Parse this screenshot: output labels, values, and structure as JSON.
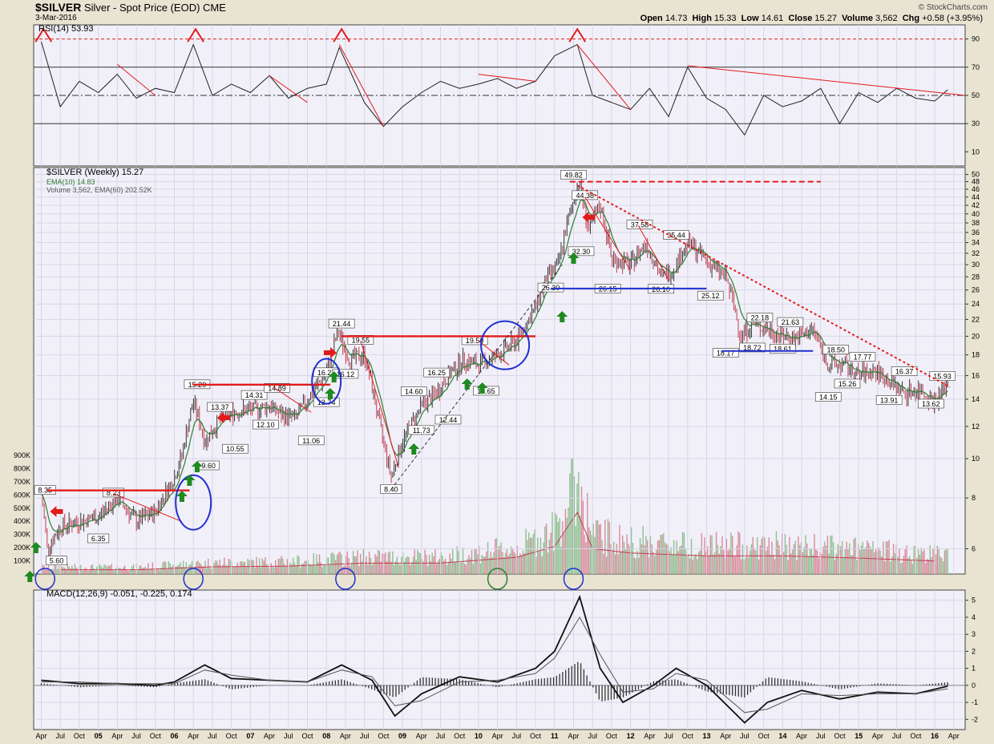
{
  "header": {
    "symbol": "$SILVER",
    "description": "Silver - Spot Price (EOD)",
    "exchange": "CME",
    "date": "3-Mar-2016",
    "brand": "© StockCharts.com",
    "open_label": "Open",
    "open": "14.73",
    "high_label": "High",
    "high": "15.33",
    "low_label": "Low",
    "low": "14.61",
    "close_label": "Close",
    "close": "15.27",
    "volume_label": "Volume",
    "volume": "3,562",
    "chg_label": "Chg",
    "chg": "+0.58 (+3.95%)"
  },
  "colors": {
    "background": "#e9e3d2",
    "panel": "#f1f0f9",
    "up_bar": "#5a9a5a",
    "down_bar": "#c23c4e",
    "ema": "#2e7d32",
    "trendline": "#e31b1b",
    "support": "#1f2fd0",
    "circle": "#1f2fd0",
    "arrow_up": "#1f8a1f",
    "arrow_left": "#e31b1b"
  },
  "chart_data": [
    {
      "type": "line",
      "panel": "rsi",
      "legend": "RSI(14) 53.93",
      "ylim": [
        0,
        100
      ],
      "ticks": [
        "90",
        "70",
        "50",
        "30",
        "10"
      ],
      "tick_values": [
        90,
        70,
        50,
        30,
        10
      ],
      "reference_lines": [
        90,
        70,
        50,
        30
      ],
      "x": [
        2004.25,
        2004.5,
        2004.75,
        2005.0,
        2005.25,
        2005.5,
        2005.75,
        2006.0,
        2006.25,
        2006.5,
        2006.75,
        2007.0,
        2007.25,
        2007.5,
        2007.75,
        2008.0,
        2008.17,
        2008.5,
        2008.75,
        2009.0,
        2009.25,
        2009.5,
        2009.75,
        2010.0,
        2010.25,
        2010.5,
        2010.75,
        2011.0,
        2011.3,
        2011.5,
        2011.75,
        2012.0,
        2012.25,
        2012.5,
        2012.75,
        2013.0,
        2013.25,
        2013.5,
        2013.75,
        2014.0,
        2014.25,
        2014.5,
        2014.75,
        2015.0,
        2015.25,
        2015.5,
        2015.75,
        2016.0,
        2016.17
      ],
      "values": [
        88,
        42,
        60,
        52,
        65,
        48,
        55,
        52,
        86,
        50,
        58,
        52,
        64,
        48,
        55,
        58,
        84,
        45,
        28,
        42,
        52,
        60,
        55,
        58,
        62,
        55,
        60,
        78,
        86,
        50,
        45,
        40,
        55,
        35,
        70,
        48,
        40,
        22,
        50,
        42,
        46,
        55,
        30,
        52,
        45,
        55,
        48,
        46,
        54
      ]
    },
    {
      "type": "bar",
      "panel": "price",
      "legend_title": "$SILVER (Weekly) 15.27",
      "legend_ema": "EMA(10) 14.83",
      "legend_volume": "Volume 3,562, EMA(60) 202.52K",
      "scale": "log",
      "ylim": [
        5.2,
        52
      ],
      "ticks": [
        "50",
        "48",
        "46",
        "44",
        "42",
        "40",
        "38",
        "36",
        "34",
        "32",
        "30",
        "28",
        "26",
        "24",
        "22",
        "20",
        "18",
        "16",
        "14",
        "12",
        "10",
        "8",
        "6"
      ],
      "tick_values": [
        50,
        48,
        46,
        44,
        42,
        40,
        38,
        36,
        34,
        32,
        30,
        28,
        26,
        24,
        22,
        20,
        18,
        16,
        14,
        12,
        10,
        8,
        6
      ],
      "x": [
        2004.25,
        2004.33,
        2004.5,
        2004.75,
        2005.0,
        2005.25,
        2005.5,
        2005.75,
        2006.0,
        2006.1,
        2006.25,
        2006.4,
        2006.6,
        2006.75,
        2007.0,
        2007.25,
        2007.4,
        2007.6,
        2007.75,
        2008.0,
        2008.15,
        2008.3,
        2008.5,
        2008.7,
        2008.85,
        2009.0,
        2009.25,
        2009.45,
        2009.6,
        2009.8,
        2010.0,
        2010.25,
        2010.5,
        2010.75,
        2010.9,
        2011.05,
        2011.2,
        2011.32,
        2011.45,
        2011.6,
        2011.75,
        2012.0,
        2012.2,
        2012.4,
        2012.55,
        2012.75,
        2012.9,
        2013.05,
        2013.25,
        2013.45,
        2013.6,
        2013.75,
        2014.0,
        2014.2,
        2014.4,
        2014.6,
        2014.8,
        2015.0,
        2015.2,
        2015.4,
        2015.6,
        2015.8,
        2016.0,
        2016.17
      ],
      "values": [
        8.2,
        6.0,
        6.8,
        7.0,
        7.2,
        8.0,
        7.0,
        7.4,
        9.0,
        10.2,
        13.8,
        11.0,
        12.5,
        13.0,
        13.2,
        13.5,
        12.8,
        12.6,
        14.0,
        16.2,
        20.5,
        17.5,
        18.0,
        12.0,
        9.0,
        11.0,
        13.5,
        14.5,
        16.0,
        17.5,
        17.0,
        18.0,
        19.5,
        23.5,
        28.0,
        30.0,
        40.0,
        48.0,
        36.0,
        42.0,
        31.0,
        30.0,
        34.0,
        28.0,
        29.0,
        34.0,
        32.0,
        30.0,
        28.0,
        20.0,
        21.5,
        21.0,
        20.0,
        19.8,
        20.8,
        17.0,
        17.0,
        16.0,
        16.5,
        15.5,
        14.5,
        14.8,
        13.8,
        15.27
      ],
      "ema_label": "EMA(10)",
      "point_labels": [
        {
          "x": 2004.3,
          "y": 8.35,
          "t": "8.35"
        },
        {
          "x": 2004.45,
          "y": 5.6,
          "t": "5.60"
        },
        {
          "x": 2005.2,
          "y": 8.23,
          "t": "8.23"
        },
        {
          "x": 2005.0,
          "y": 6.35,
          "t": "6.35"
        },
        {
          "x": 2006.3,
          "y": 15.2,
          "t": "15.20"
        },
        {
          "x": 2006.45,
          "y": 9.6,
          "t": "9.60"
        },
        {
          "x": 2006.6,
          "y": 13.37,
          "t": "13.37"
        },
        {
          "x": 2006.8,
          "y": 10.55,
          "t": "10.55"
        },
        {
          "x": 2007.2,
          "y": 12.1,
          "t": "12.10"
        },
        {
          "x": 2007.05,
          "y": 14.31,
          "t": "14.31"
        },
        {
          "x": 2007.35,
          "y": 14.89,
          "t": "14.89"
        },
        {
          "x": 2007.8,
          "y": 11.06,
          "t": "11.06"
        },
        {
          "x": 2008.0,
          "y": 16.27,
          "t": "16.27"
        },
        {
          "x": 2008.0,
          "y": 13.74,
          "t": "13.74"
        },
        {
          "x": 2008.25,
          "y": 16.12,
          "t": "16.12"
        },
        {
          "x": 2008.2,
          "y": 21.44,
          "t": "21.44"
        },
        {
          "x": 2008.45,
          "y": 19.55,
          "t": "19.55"
        },
        {
          "x": 2008.85,
          "y": 8.4,
          "t": "8.40"
        },
        {
          "x": 2009.15,
          "y": 14.6,
          "t": "14.60"
        },
        {
          "x": 2009.25,
          "y": 11.73,
          "t": "11.73"
        },
        {
          "x": 2009.45,
          "y": 16.25,
          "t": "16.25"
        },
        {
          "x": 2009.6,
          "y": 12.44,
          "t": "12.44"
        },
        {
          "x": 2009.95,
          "y": 19.5,
          "t": "19.50"
        },
        {
          "x": 2010.1,
          "y": 14.65,
          "t": "14.65"
        },
        {
          "x": 2011.25,
          "y": 49.82,
          "t": "49.82"
        },
        {
          "x": 2011.4,
          "y": 44.38,
          "t": "44.38"
        },
        {
          "x": 2011.35,
          "y": 32.3,
          "t": "32.30"
        },
        {
          "x": 2010.95,
          "y": 26.3,
          "t": "26.30"
        },
        {
          "x": 2011.7,
          "y": 26.15,
          "t": "26.15"
        },
        {
          "x": 2012.12,
          "y": 37.58,
          "t": "37.58"
        },
        {
          "x": 2012.4,
          "y": 26.1,
          "t": "26.10"
        },
        {
          "x": 2012.6,
          "y": 35.44,
          "t": "35.44"
        },
        {
          "x": 2013.05,
          "y": 25.12,
          "t": "25.12"
        },
        {
          "x": 2013.25,
          "y": 18.17,
          "t": "18.17"
        },
        {
          "x": 2013.6,
          "y": 18.72,
          "t": "18.72"
        },
        {
          "x": 2013.7,
          "y": 22.18,
          "t": "22.18"
        },
        {
          "x": 2014.0,
          "y": 18.61,
          "t": "18.61"
        },
        {
          "x": 2014.1,
          "y": 21.63,
          "t": "21.63"
        },
        {
          "x": 2014.7,
          "y": 18.5,
          "t": "18.50"
        },
        {
          "x": 2014.6,
          "y": 14.15,
          "t": "14.15"
        },
        {
          "x": 2014.85,
          "y": 15.26,
          "t": "15.26"
        },
        {
          "x": 2015.05,
          "y": 17.77,
          "t": "17.77"
        },
        {
          "x": 2015.6,
          "y": 16.37,
          "t": "16.37"
        },
        {
          "x": 2015.4,
          "y": 13.91,
          "t": "13.91"
        },
        {
          "x": 2015.95,
          "y": 13.62,
          "t": "13.62"
        },
        {
          "x": 2016.1,
          "y": 15.93,
          "t": "15.93"
        }
      ]
    },
    {
      "type": "bar",
      "panel": "volume",
      "ylim": [
        0,
        900000
      ],
      "ticks": [
        "900K",
        "800K",
        "700K",
        "600K",
        "500K",
        "400K",
        "300K",
        "200K",
        "100K"
      ],
      "tick_values": [
        900000,
        800000,
        700000,
        600000,
        500000,
        400000,
        300000,
        200000,
        100000
      ],
      "x": [
        2004.5,
        2005.5,
        2006.5,
        2007.5,
        2008.5,
        2009.5,
        2010.5,
        2011.0,
        2011.3,
        2011.5,
        2012.0,
        2013.0,
        2014.0,
        2015.0,
        2016.0
      ],
      "values": [
        60000,
        60000,
        100000,
        110000,
        150000,
        150000,
        230000,
        380000,
        850000,
        350000,
        290000,
        250000,
        250000,
        220000,
        180000
      ]
    },
    {
      "type": "line",
      "panel": "macd",
      "legend": "MACD(12,26,9) -0.051, -0.225, 0.174",
      "ylim": [
        -2.6,
        5.6
      ],
      "ticks": [
        "5",
        "4",
        "3",
        "2",
        "1",
        "0",
        "-1",
        "-2"
      ],
      "tick_values": [
        5,
        4,
        3,
        2,
        1,
        0,
        -1,
        -2
      ],
      "x": [
        2004.25,
        2004.75,
        2005.25,
        2005.75,
        2006.0,
        2006.4,
        2006.75,
        2007.25,
        2007.75,
        2008.2,
        2008.6,
        2008.9,
        2009.25,
        2009.75,
        2010.25,
        2010.75,
        2011.0,
        2011.33,
        2011.6,
        2011.9,
        2012.3,
        2012.6,
        2013.0,
        2013.5,
        2013.8,
        2014.25,
        2014.75,
        2015.25,
        2015.75,
        2016.17
      ],
      "values": [
        0.3,
        0.1,
        0.1,
        0.0,
        0.2,
        1.2,
        0.4,
        0.3,
        0.2,
        1.2,
        0.3,
        -1.8,
        -0.5,
        0.5,
        0.2,
        1.0,
        2.0,
        5.2,
        1.0,
        -1.0,
        0.0,
        1.0,
        0.0,
        -2.2,
        -1.0,
        -0.3,
        -0.8,
        -0.4,
        -0.5,
        -0.05
      ],
      "signal_values": [
        0.2,
        0.2,
        0.1,
        0.1,
        0.1,
        0.9,
        0.6,
        0.3,
        0.2,
        0.9,
        0.5,
        -1.2,
        -0.9,
        0.2,
        0.3,
        0.7,
        1.6,
        4.0,
        1.8,
        -0.4,
        -0.2,
        0.7,
        0.3,
        -1.6,
        -1.4,
        -0.5,
        -0.6,
        -0.5,
        -0.5,
        -0.2
      ]
    }
  ],
  "x_axis": {
    "labels": [
      {
        "x": 2004.25,
        "t": "Apr"
      },
      {
        "x": 2004.5,
        "t": "Jul"
      },
      {
        "x": 2004.75,
        "t": "Oct"
      },
      {
        "x": 2005.0,
        "t": "05",
        "bold": true
      },
      {
        "x": 2005.25,
        "t": "Apr"
      },
      {
        "x": 2005.5,
        "t": "Jul"
      },
      {
        "x": 2005.75,
        "t": "Oct"
      },
      {
        "x": 2006.0,
        "t": "06",
        "bold": true
      },
      {
        "x": 2006.25,
        "t": "Apr"
      },
      {
        "x": 2006.5,
        "t": "Jul"
      },
      {
        "x": 2006.75,
        "t": "Oct"
      },
      {
        "x": 2007.0,
        "t": "07",
        "bold": true
      },
      {
        "x": 2007.25,
        "t": "Apr"
      },
      {
        "x": 2007.5,
        "t": "Jul"
      },
      {
        "x": 2007.75,
        "t": "Oct"
      },
      {
        "x": 2008.0,
        "t": "08",
        "bold": true
      },
      {
        "x": 2008.25,
        "t": "Apr"
      },
      {
        "x": 2008.5,
        "t": "Jul"
      },
      {
        "x": 2008.75,
        "t": "Oct"
      },
      {
        "x": 2009.0,
        "t": "09",
        "bold": true
      },
      {
        "x": 2009.25,
        "t": "Apr"
      },
      {
        "x": 2009.5,
        "t": "Jul"
      },
      {
        "x": 2009.75,
        "t": "Oct"
      },
      {
        "x": 2010.0,
        "t": "10",
        "bold": true
      },
      {
        "x": 2010.25,
        "t": "Apr"
      },
      {
        "x": 2010.5,
        "t": "Jul"
      },
      {
        "x": 2010.75,
        "t": "Oct"
      },
      {
        "x": 2011.0,
        "t": "11",
        "bold": true
      },
      {
        "x": 2011.25,
        "t": "Apr"
      },
      {
        "x": 2011.5,
        "t": "Jul"
      },
      {
        "x": 2011.75,
        "t": "Oct"
      },
      {
        "x": 2012.0,
        "t": "12",
        "bold": true
      },
      {
        "x": 2012.25,
        "t": "Apr"
      },
      {
        "x": 2012.5,
        "t": "Jul"
      },
      {
        "x": 2012.75,
        "t": "Oct"
      },
      {
        "x": 2013.0,
        "t": "13",
        "bold": true
      },
      {
        "x": 2013.25,
        "t": "Apr"
      },
      {
        "x": 2013.5,
        "t": "Jul"
      },
      {
        "x": 2013.75,
        "t": "Oct"
      },
      {
        "x": 2014.0,
        "t": "14",
        "bold": true
      },
      {
        "x": 2014.25,
        "t": "Apr"
      },
      {
        "x": 2014.5,
        "t": "Jul"
      },
      {
        "x": 2014.75,
        "t": "Oct"
      },
      {
        "x": 2015.0,
        "t": "15",
        "bold": true
      },
      {
        "x": 2015.25,
        "t": "Apr"
      },
      {
        "x": 2015.5,
        "t": "Jul"
      },
      {
        "x": 2015.75,
        "t": "Oct"
      },
      {
        "x": 2016.0,
        "t": "16",
        "bold": true
      },
      {
        "x": 2016.25,
        "t": "Apr"
      }
    ]
  }
}
